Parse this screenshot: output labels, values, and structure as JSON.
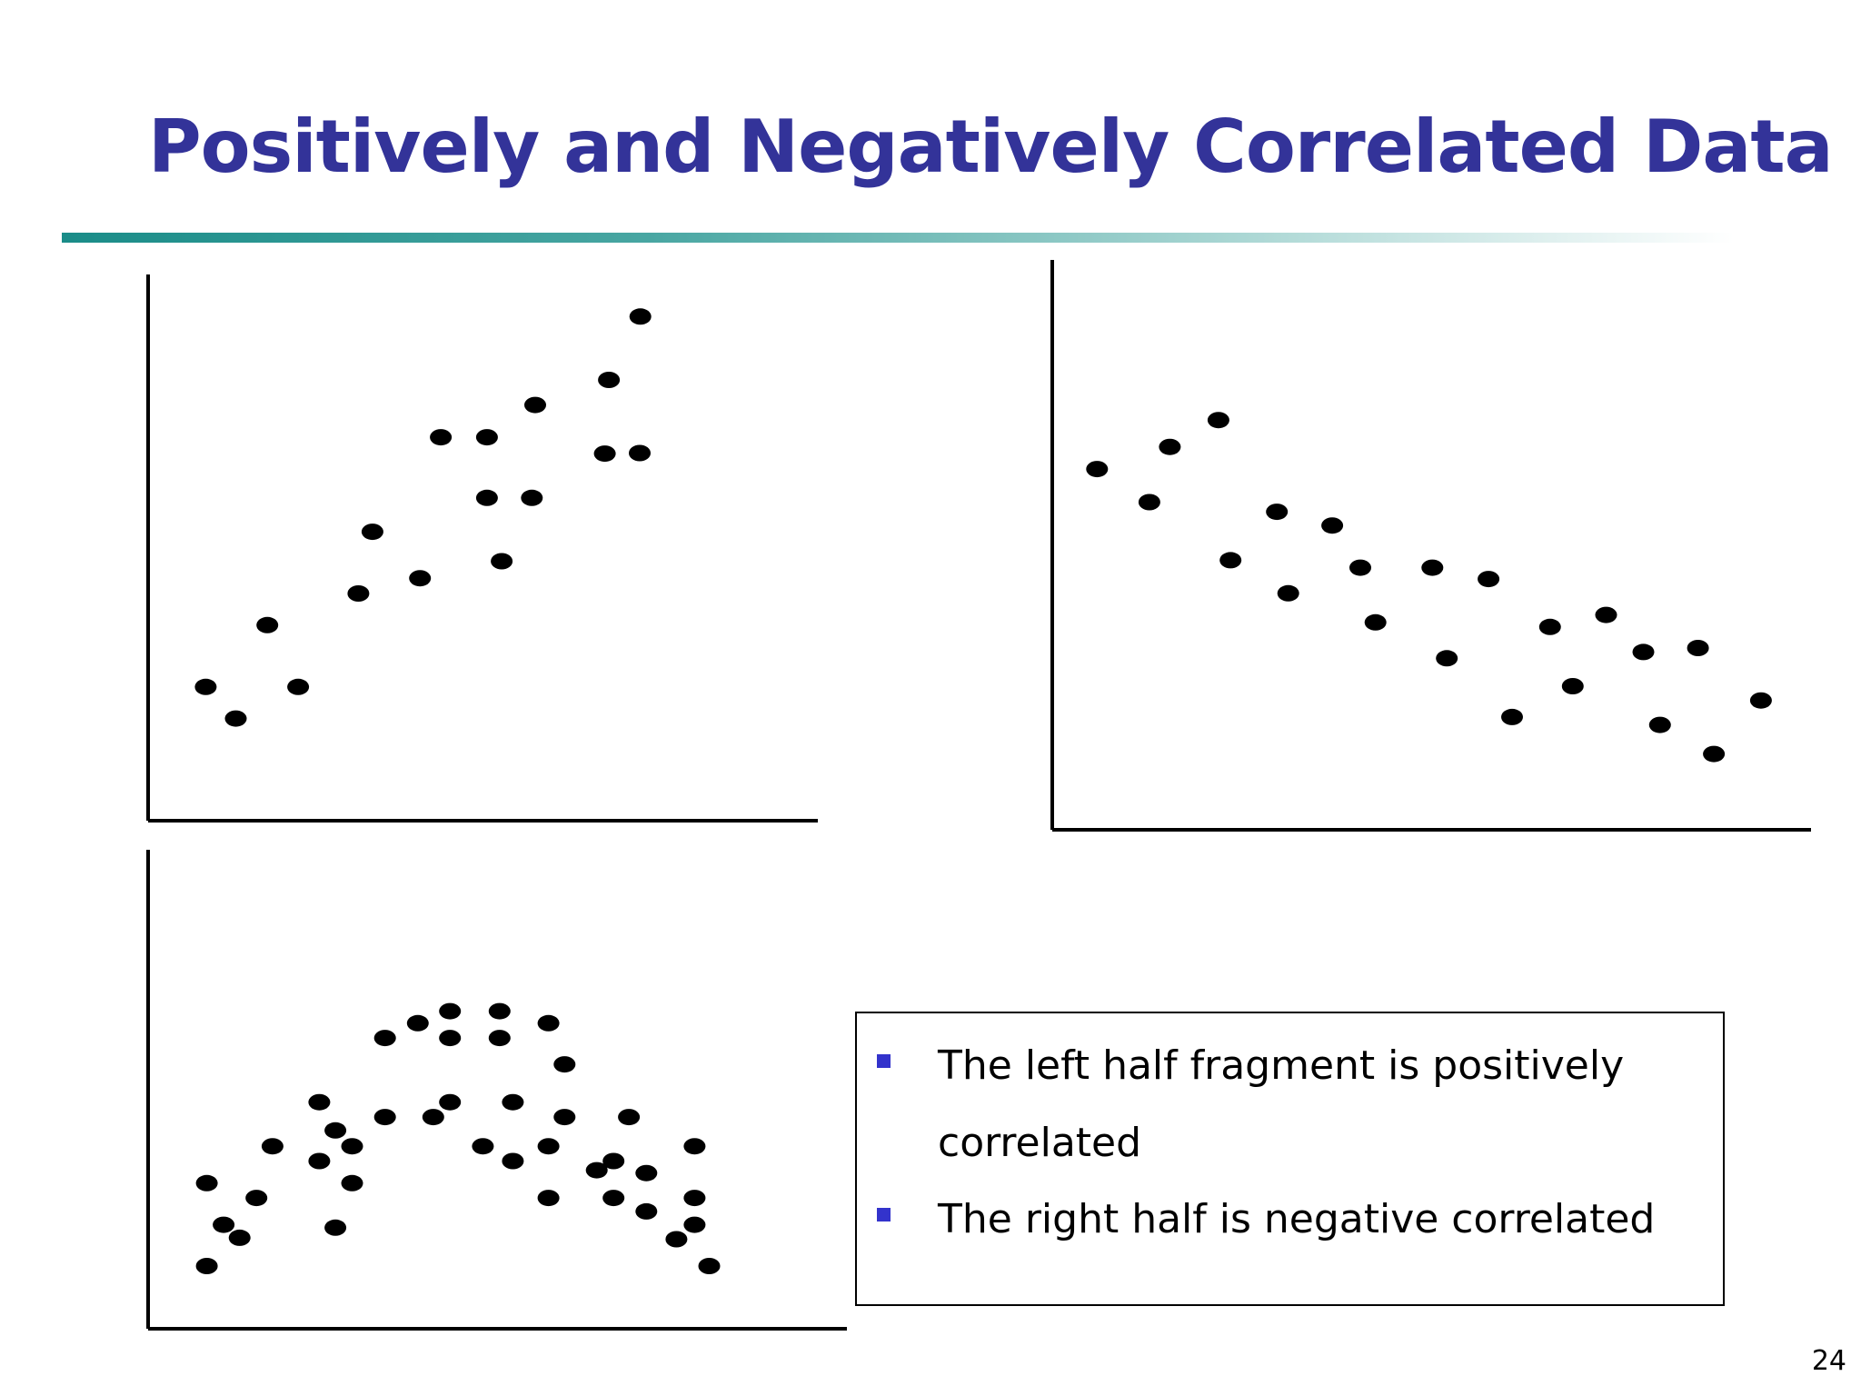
{
  "slide": {
    "title": "Positively and Negatively Correlated Data",
    "page_number": "24",
    "accent_color": "#333399",
    "bullet_color": "#3333cc",
    "rule_color": "#1a8c88",
    "bullets": [
      "The left half fragment is positively correlated",
      "The right half is negative correlated"
    ]
  },
  "chart_data": [
    {
      "type": "scatter",
      "title": "",
      "xlabel": "",
      "ylabel": "",
      "xlim": [
        0,
        100
      ],
      "ylim": [
        0,
        100
      ],
      "grid": false,
      "points": [
        [
          8.6,
          24.5
        ],
        [
          13.1,
          18.7
        ],
        [
          17.8,
          35.8
        ],
        [
          22.4,
          24.5
        ],
        [
          31.4,
          41.6
        ],
        [
          33.5,
          52.9
        ],
        [
          40.6,
          44.4
        ],
        [
          43.7,
          70.2
        ],
        [
          50.6,
          70.2
        ],
        [
          50.6,
          59.1
        ],
        [
          52.8,
          47.5
        ],
        [
          57.3,
          59.1
        ],
        [
          57.8,
          76.1
        ],
        [
          68.2,
          67.2
        ],
        [
          68.8,
          80.7
        ],
        [
          73.4,
          67.3
        ],
        [
          73.5,
          92.3
        ]
      ]
    },
    {
      "type": "scatter",
      "title": "",
      "xlabel": "",
      "ylabel": "",
      "xlim": [
        0,
        100
      ],
      "ylim": [
        0,
        100
      ],
      "grid": false,
      "points": [
        [
          5.9,
          63.3
        ],
        [
          12.8,
          57.5
        ],
        [
          15.5,
          67.2
        ],
        [
          21.9,
          71.9
        ],
        [
          23.5,
          47.3
        ],
        [
          29.6,
          55.8
        ],
        [
          31.1,
          41.5
        ],
        [
          36.9,
          53.4
        ],
        [
          40.6,
          46.0
        ],
        [
          42.6,
          36.4
        ],
        [
          50.1,
          46.0
        ],
        [
          52.0,
          30.1
        ],
        [
          57.5,
          44.0
        ],
        [
          60.6,
          19.8
        ],
        [
          65.6,
          35.6
        ],
        [
          68.6,
          25.2
        ],
        [
          73.0,
          37.7
        ],
        [
          77.9,
          31.2
        ],
        [
          80.1,
          18.4
        ],
        [
          85.1,
          31.9
        ],
        [
          87.2,
          13.3
        ],
        [
          93.4,
          22.7
        ]
      ]
    },
    {
      "type": "scatter",
      "title": "",
      "xlabel": "",
      "ylabel": "",
      "xlim": [
        0,
        100
      ],
      "ylim": [
        0,
        100
      ],
      "grid": false,
      "points": [
        [
          8.4,
          30.4
        ],
        [
          8.4,
          13.1
        ],
        [
          10.8,
          21.7
        ],
        [
          13.1,
          19.0
        ],
        [
          15.5,
          27.3
        ],
        [
          17.8,
          38.1
        ],
        [
          24.5,
          35.0
        ],
        [
          24.5,
          47.3
        ],
        [
          26.8,
          21.1
        ],
        [
          26.8,
          41.4
        ],
        [
          29.2,
          30.4
        ],
        [
          29.2,
          38.1
        ],
        [
          33.9,
          60.7
        ],
        [
          33.9,
          44.2
        ],
        [
          38.6,
          63.8
        ],
        [
          40.8,
          44.2
        ],
        [
          43.2,
          66.3
        ],
        [
          43.2,
          60.7
        ],
        [
          43.2,
          47.3
        ],
        [
          47.9,
          38.1
        ],
        [
          50.3,
          66.3
        ],
        [
          50.3,
          60.7
        ],
        [
          52.2,
          35.0
        ],
        [
          52.2,
          47.3
        ],
        [
          57.3,
          63.8
        ],
        [
          57.3,
          38.1
        ],
        [
          57.3,
          27.3
        ],
        [
          59.6,
          55.2
        ],
        [
          59.6,
          44.2
        ],
        [
          64.2,
          33.1
        ],
        [
          66.6,
          35.0
        ],
        [
          66.6,
          27.3
        ],
        [
          68.8,
          44.2
        ],
        [
          71.3,
          32.5
        ],
        [
          71.3,
          24.5
        ],
        [
          75.6,
          18.7
        ],
        [
          78.2,
          38.1
        ],
        [
          78.2,
          27.3
        ],
        [
          78.2,
          21.7
        ],
        [
          80.3,
          13.1
        ]
      ]
    }
  ]
}
